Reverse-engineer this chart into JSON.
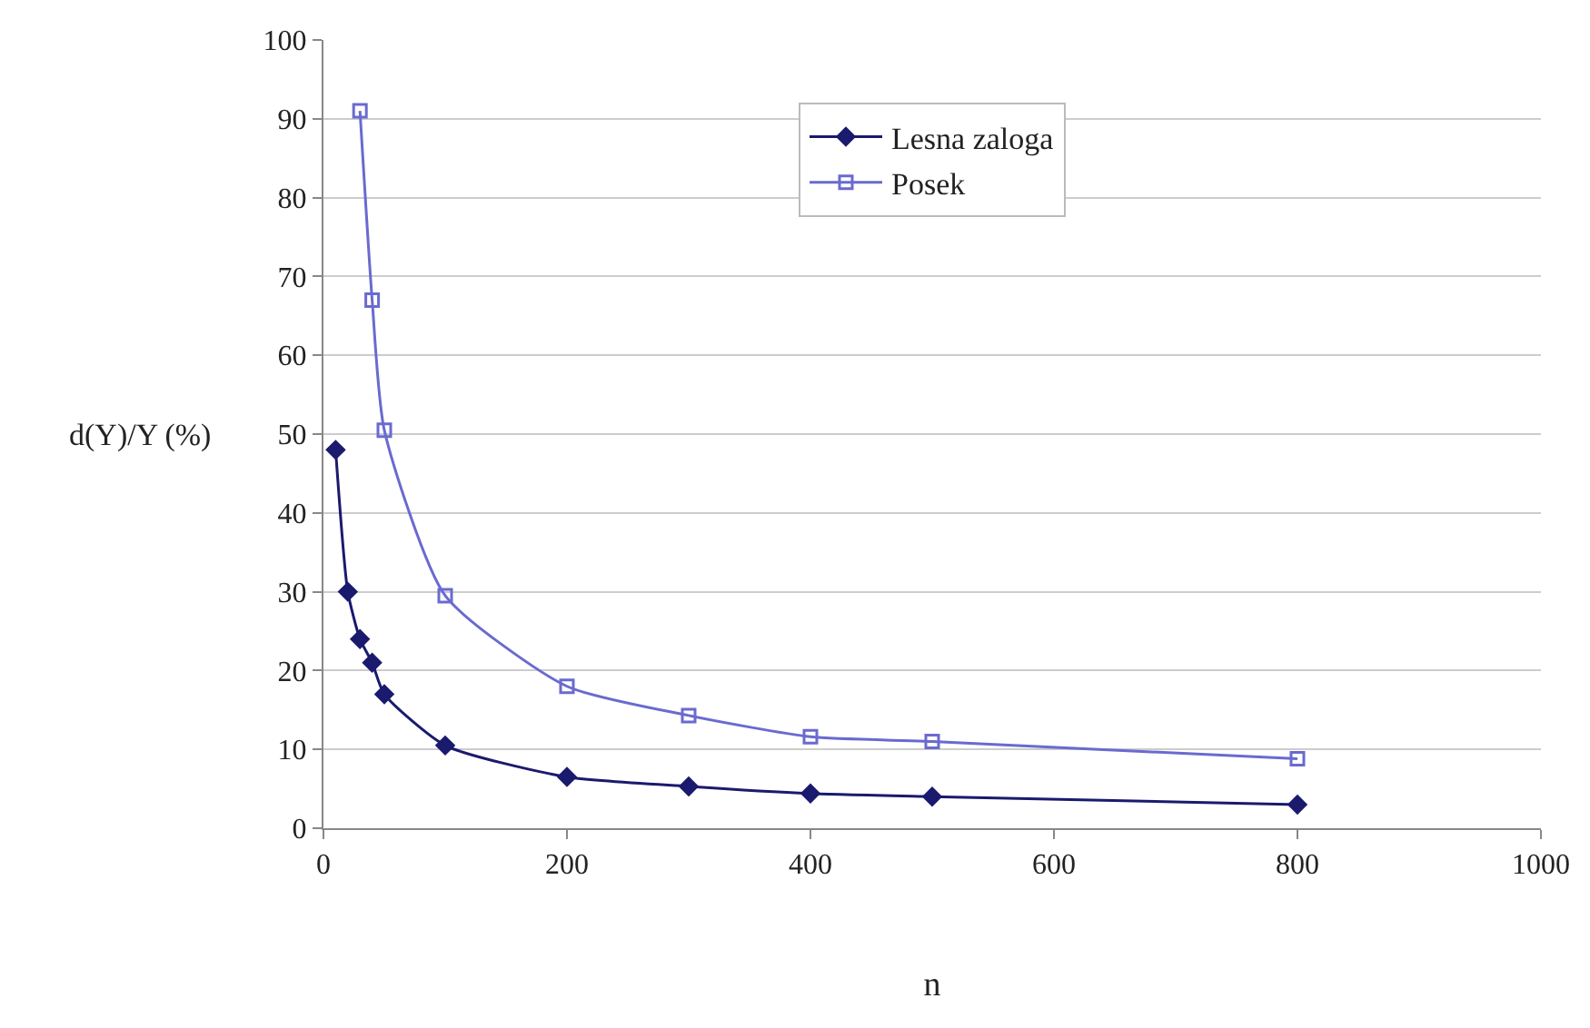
{
  "chart_data": {
    "type": "line",
    "xlabel": "n",
    "ylabel": "d(Y)/Y (%)",
    "xlim": [
      0,
      1000
    ],
    "xticks": [
      0,
      200,
      400,
      600,
      800,
      1000
    ],
    "ylim": [
      0,
      100
    ],
    "yticks": [
      0,
      10,
      20,
      30,
      40,
      50,
      60,
      70,
      80,
      90,
      100
    ],
    "grid": "y",
    "legend": "top center",
    "line_style": "solid",
    "series": [
      {
        "name": "Lesna zaloga",
        "color": "#1a1a6e",
        "marker": "diamond",
        "x": [
          10,
          20,
          30,
          40,
          50,
          100,
          200,
          300,
          400,
          500,
          800
        ],
        "values": [
          48,
          30,
          24,
          21,
          17,
          10.5,
          6.5,
          5.3,
          4.4,
          4,
          3
        ]
      },
      {
        "name": "Posek",
        "color": "#6a6ad0",
        "marker": "square",
        "x": [
          30,
          40,
          50,
          100,
          200,
          300,
          400,
          500,
          800
        ],
        "values": [
          91,
          67,
          50.5,
          29.5,
          18,
          14.3,
          11.6,
          11,
          8.8
        ]
      }
    ]
  }
}
